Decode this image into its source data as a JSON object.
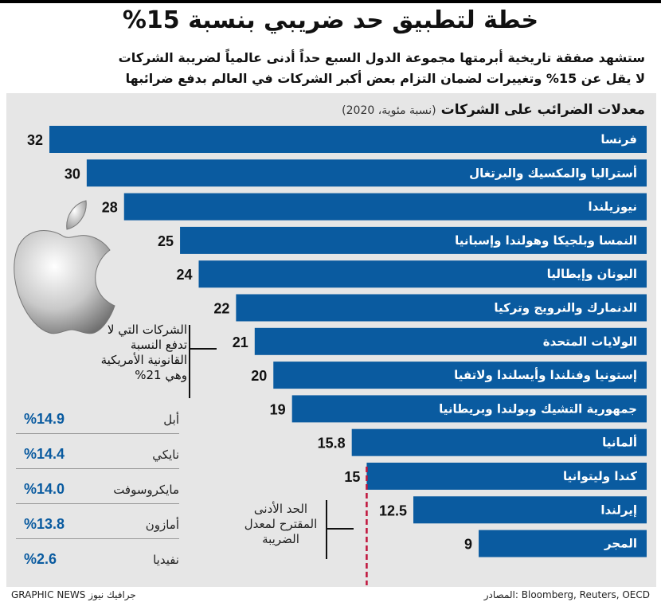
{
  "header": {
    "title": "خطة لتطبيق حد ضريبي بنسبة 15%",
    "subtitle_line1": "ستشهد صفقة تاريخية أبرمتها مجموعة الدول السبع حداً أدنى عالمياً لضريبة الشركات",
    "subtitle_line2": "لا يقل عن 15% وتغييرات لضمان التزام بعض أكبر الشركات في العالم بدفع ضرائبها"
  },
  "chart_data": {
    "type": "bar",
    "orientation": "horizontal",
    "title": "معدلات الضرائب على الشركات",
    "unit": "(نسبة مئوية، 2020)",
    "categories": [
      "فرنسا",
      "أستراليا والمكسيك والبرتغال",
      "نيوزيلندا",
      "النمسا وبلجيكا وهولندا وإسبانيا",
      "اليونان وإيطاليا",
      "الدنمارك والنرويج وتركيا",
      "الولايات المتحدة",
      "إستونيا وفنلندا وأيسلندا ولاتفيا",
      "جمهورية التشيك وبولندا وبريطانيا",
      "ألمانيا",
      "كندا وليتوانيا",
      "إيرلندا",
      "المجر"
    ],
    "values": [
      32,
      30,
      28,
      25,
      24,
      22,
      21,
      20,
      19,
      15.8,
      15,
      12.5,
      9
    ],
    "value_labels": [
      "32",
      "30",
      "28",
      "25",
      "24",
      "22",
      "21",
      "20",
      "19",
      "15.8",
      "15",
      "12.5",
      "9"
    ],
    "xlim": [
      0,
      32
    ],
    "bar_color": "#0a5ba0",
    "reference_line": {
      "value": 15,
      "color": "#c0143c",
      "style": "dashed",
      "label": "الحد الأدنى المقترح لمعدل الضريبة"
    }
  },
  "companies": {
    "heading": "الشركات التي لا تدفع النسبة القانونية الأمريكية وهي 21%",
    "items": [
      {
        "name": "أبل",
        "rate": "%14.9"
      },
      {
        "name": "نايكي",
        "rate": "%14.4"
      },
      {
        "name": "مايكروسوفت",
        "rate": "%14.0"
      },
      {
        "name": "أمازون",
        "rate": "%13.8"
      },
      {
        "name": "نفيديا",
        "rate": "%2.6"
      }
    ],
    "icon": "apple-logo-icon"
  },
  "footer": {
    "source": "المصادر: Bloomberg, Reuters, OECD",
    "credit": "GRAPHIC NEWS جرافيك نيوز"
  }
}
